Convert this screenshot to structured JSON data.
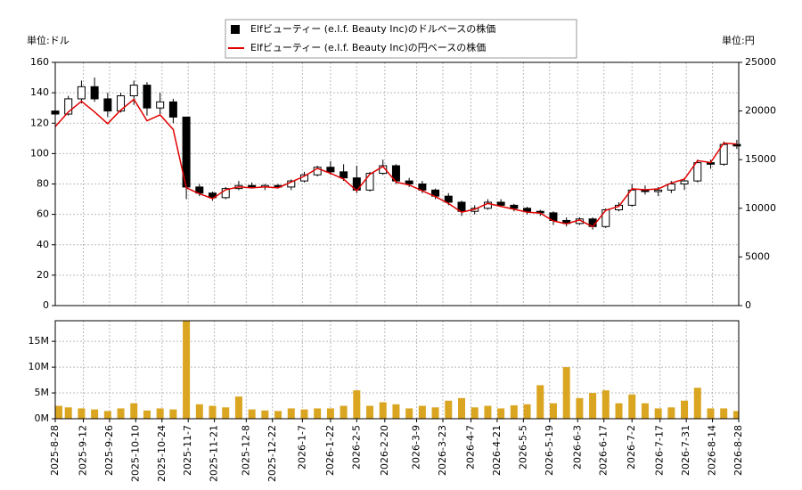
{
  "chart_data": [
    {
      "type": "candlestick",
      "legend": "upper-center",
      "ylabel": "単位:ドル",
      "y2label": "単位:円",
      "xlim": [
        "2025-08-28",
        "2026-08-28"
      ],
      "ylim": [
        0,
        160
      ],
      "yticks": [
        0,
        20,
        40,
        60,
        80,
        100,
        120,
        140,
        160
      ],
      "y2lim": [
        0,
        25000
      ],
      "y2ticks": [
        0,
        5000,
        10000,
        15000,
        20000,
        25000
      ],
      "grid": true,
      "x": [
        "2025-08-28",
        "2025-09-04",
        "2025-09-11",
        "2025-09-18",
        "2025-09-25",
        "2025-10-02",
        "2025-10-09",
        "2025-10-16",
        "2025-10-23",
        "2025-10-30",
        "2025-11-06",
        "2025-11-13",
        "2025-11-20",
        "2025-11-27",
        "2025-12-04",
        "2025-12-11",
        "2025-12-18",
        "2025-12-25",
        "2026-01-01",
        "2026-01-08",
        "2026-01-15",
        "2026-01-22",
        "2026-01-29",
        "2026-02-05",
        "2026-02-12",
        "2026-02-19",
        "2026-02-26",
        "2026-03-05",
        "2026-03-12",
        "2026-03-19",
        "2026-03-26",
        "2026-04-02",
        "2026-04-09",
        "2026-04-16",
        "2026-04-23",
        "2026-04-30",
        "2026-05-07",
        "2026-05-14",
        "2026-05-21",
        "2026-05-28",
        "2026-06-04",
        "2026-06-11",
        "2026-06-18",
        "2026-06-25",
        "2026-07-02",
        "2026-07-09",
        "2026-07-16",
        "2026-07-23",
        "2026-07-30",
        "2026-08-06",
        "2026-08-13",
        "2026-08-20",
        "2026-08-27"
      ],
      "series": [
        {
          "name": "Elfビューティー (e.l.f. Beauty Inc)のドルベースの株価",
          "color": "#000000",
          "open": [
            128,
            126,
            136,
            144,
            136,
            128,
            138,
            145,
            130,
            134,
            124,
            78,
            74,
            71,
            77,
            79,
            78,
            79,
            78,
            82,
            86,
            91,
            88,
            84,
            76,
            87,
            92,
            82,
            80,
            76,
            72,
            68,
            62,
            64,
            68,
            66,
            64,
            62,
            61,
            56,
            54,
            57,
            52,
            63,
            66,
            76,
            75,
            76,
            80,
            82,
            94,
            93,
            106
          ],
          "high": [
            132,
            138,
            148,
            150,
            140,
            140,
            148,
            147,
            140,
            136,
            124,
            80,
            75,
            78,
            82,
            81,
            80,
            80,
            83,
            88,
            92,
            95,
            93,
            92,
            88,
            96,
            93,
            84,
            82,
            77,
            74,
            69,
            66,
            70,
            70,
            67,
            65,
            63,
            62,
            58,
            58,
            58,
            64,
            68,
            80,
            79,
            78,
            82,
            84,
            96,
            96,
            108,
            109
          ],
          "low": [
            122,
            125,
            133,
            134,
            124,
            127,
            132,
            125,
            126,
            120,
            70,
            72,
            69,
            70,
            76,
            77,
            76,
            77,
            76,
            81,
            85,
            86,
            82,
            74,
            75,
            86,
            80,
            78,
            74,
            70,
            66,
            59,
            60,
            63,
            65,
            62,
            60,
            59,
            53,
            52,
            53,
            50,
            51,
            62,
            65,
            73,
            72,
            74,
            76,
            81,
            90,
            92,
            103
          ],
          "close": [
            126,
            136,
            144,
            136,
            128,
            138,
            145,
            130,
            134,
            124,
            78,
            74,
            71,
            77,
            79,
            78,
            79,
            78,
            82,
            86,
            91,
            88,
            84,
            76,
            87,
            92,
            82,
            80,
            76,
            72,
            68,
            62,
            64,
            68,
            66,
            64,
            62,
            61,
            56,
            54,
            57,
            52,
            63,
            66,
            76,
            75,
            76,
            80,
            82,
            94,
            93,
            106,
            105
          ]
        },
        {
          "name": "Elfビューティー (e.l.f. Beauty Inc)の円ベースの株価",
          "color": "#e00000",
          "axis": "y2",
          "values": [
            18400,
            19900,
            21000,
            19900,
            18700,
            20100,
            21200,
            19000,
            19600,
            18100,
            12100,
            11500,
            11000,
            11900,
            12200,
            12100,
            12200,
            12100,
            12700,
            13300,
            14100,
            13600,
            13000,
            11800,
            13500,
            14300,
            12700,
            12400,
            11800,
            11200,
            10500,
            9600,
            9900,
            10500,
            10200,
            9900,
            9600,
            9500,
            8700,
            8400,
            8800,
            8100,
            9800,
            10200,
            12000,
            11900,
            12000,
            12600,
            13000,
            14900,
            14700,
            16700,
            16600
          ]
        }
      ]
    },
    {
      "type": "bar",
      "color": "#daa520",
      "grid": true,
      "xlim": [
        "2025-08-28",
        "2026-08-28"
      ],
      "ylim": [
        0,
        19000000
      ],
      "yticks": [
        {
          "value": 0,
          "label": "0M"
        },
        {
          "value": 5000000,
          "label": "5M"
        },
        {
          "value": 10000000,
          "label": "10M"
        },
        {
          "value": 15000000,
          "label": "15M"
        }
      ],
      "xticks": [
        {
          "value": "2025-08-28",
          "label": "2025-8-28"
        },
        {
          "value": "2025-09-12",
          "label": "2025-9-12"
        },
        {
          "value": "2025-09-26",
          "label": "2025-9-26"
        },
        {
          "value": "2025-10-10",
          "label": "2025-10-10"
        },
        {
          "value": "2025-10-24",
          "label": "2025-10-24"
        },
        {
          "value": "2025-11-07",
          "label": "2025-11-7"
        },
        {
          "value": "2025-11-21",
          "label": "2025-11-21"
        },
        {
          "value": "2025-12-08",
          "label": "2025-12-8"
        },
        {
          "value": "2025-12-22",
          "label": "2025-12-22"
        },
        {
          "value": "2026-01-07",
          "label": "2026-1-7"
        },
        {
          "value": "2026-01-22",
          "label": "2026-1-22"
        },
        {
          "value": "2026-02-05",
          "label": "2026-2-5"
        },
        {
          "value": "2026-02-20",
          "label": "2026-2-20"
        },
        {
          "value": "2026-03-09",
          "label": "2026-3-9"
        },
        {
          "value": "2026-03-23",
          "label": "2026-3-23"
        },
        {
          "value": "2026-04-07",
          "label": "2026-4-7"
        },
        {
          "value": "2026-04-21",
          "label": "2026-4-21"
        },
        {
          "value": "2026-05-05",
          "label": "2026-5-5"
        },
        {
          "value": "2026-05-19",
          "label": "2026-5-19"
        },
        {
          "value": "2026-06-03",
          "label": "2026-6-3"
        },
        {
          "value": "2026-06-17",
          "label": "2026-6-17"
        },
        {
          "value": "2026-07-02",
          "label": "2026-7-2"
        },
        {
          "value": "2026-07-17",
          "label": "2026-7-17"
        },
        {
          "value": "2026-07-31",
          "label": "2026-7-31"
        },
        {
          "value": "2026-08-14",
          "label": "2026-8-14"
        },
        {
          "value": "2026-08-28",
          "label": "2026-8-28"
        }
      ],
      "x": [
        "2025-08-28",
        "2025-09-04",
        "2025-09-11",
        "2025-09-18",
        "2025-09-25",
        "2025-10-02",
        "2025-10-09",
        "2025-10-16",
        "2025-10-23",
        "2025-10-30",
        "2025-11-06",
        "2025-11-13",
        "2025-11-20",
        "2025-11-27",
        "2025-12-04",
        "2025-12-11",
        "2025-12-18",
        "2025-12-25",
        "2026-01-01",
        "2026-01-08",
        "2026-01-15",
        "2026-01-22",
        "2026-01-29",
        "2026-02-05",
        "2026-02-12",
        "2026-02-19",
        "2026-02-26",
        "2026-03-05",
        "2026-03-12",
        "2026-03-19",
        "2026-03-26",
        "2026-04-02",
        "2026-04-09",
        "2026-04-16",
        "2026-04-23",
        "2026-04-30",
        "2026-05-07",
        "2026-05-14",
        "2026-05-21",
        "2026-05-28",
        "2026-06-04",
        "2026-06-11",
        "2026-06-18",
        "2026-06-25",
        "2026-07-02",
        "2026-07-09",
        "2026-07-16",
        "2026-07-23",
        "2026-07-30",
        "2026-08-06",
        "2026-08-13",
        "2026-08-20",
        "2026-08-27"
      ],
      "values": [
        2500000,
        2200000,
        2000000,
        1800000,
        1500000,
        2000000,
        3000000,
        1600000,
        2000000,
        1800000,
        19000000,
        2800000,
        2500000,
        2200000,
        4300000,
        1800000,
        1600000,
        1500000,
        2000000,
        1800000,
        2000000,
        2000000,
        2500000,
        5500000,
        2500000,
        3200000,
        2800000,
        2000000,
        2500000,
        2200000,
        3500000,
        4000000,
        2200000,
        2500000,
        2000000,
        2600000,
        2800000,
        6500000,
        3000000,
        10000000,
        4000000,
        5000000,
        5500000,
        3000000,
        4700000,
        3000000,
        2000000,
        2200000,
        3500000,
        6000000,
        2000000,
        2000000,
        1500000
      ]
    }
  ]
}
